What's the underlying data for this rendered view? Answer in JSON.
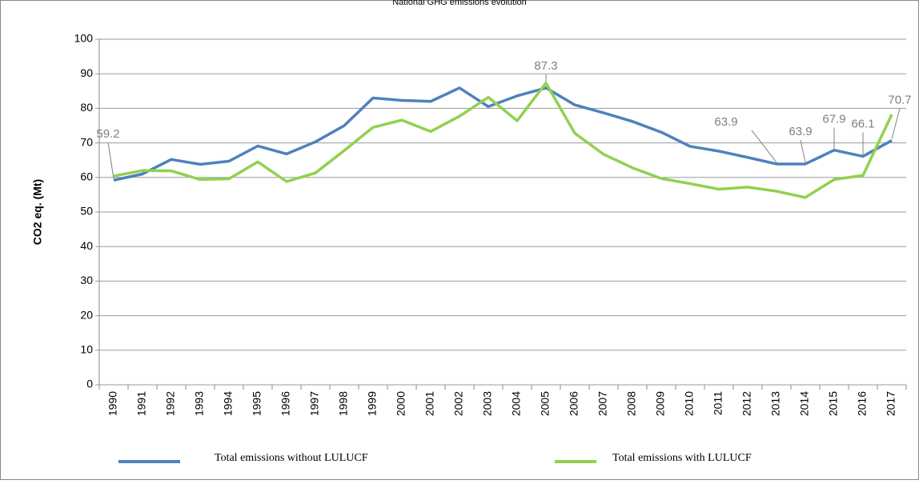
{
  "chart_data": {
    "type": "line",
    "title": "National GHG emissions evolution",
    "y_label": "CO2 eq. (Mt)",
    "categories": [
      "1990",
      "1991",
      "1992",
      "1993",
      "1994",
      "1995",
      "1996",
      "1997",
      "1998",
      "1999",
      "2000",
      "2001",
      "2002",
      "2003",
      "2004",
      "2005",
      "2006",
      "2007",
      "2008",
      "2009",
      "2010",
      "2011",
      "2012",
      "2013",
      "2014",
      "2015",
      "2016",
      "2017"
    ],
    "series": [
      {
        "name": "Total emissions without LULUCF",
        "color": "#4f81bd",
        "values": [
          59.2,
          61,
          65.2,
          63.8,
          64.7,
          69.1,
          66.8,
          70.3,
          75,
          83,
          82.3,
          82,
          85.9,
          80.5,
          83.6,
          85.9,
          81,
          78.7,
          76.2,
          73.1,
          69,
          67.6,
          65.8,
          63.9,
          63.9,
          67.9,
          66.1,
          70.7
        ],
        "value_labels": [
          "59.2",
          null,
          null,
          null,
          null,
          null,
          null,
          null,
          null,
          null,
          null,
          null,
          null,
          null,
          null,
          null,
          null,
          null,
          null,
          null,
          null,
          null,
          null,
          "63.9",
          "63.9",
          "67.9",
          "66.1",
          "70.7"
        ]
      },
      {
        "name": "Total emissions with LULUCF",
        "color": "#92d050",
        "values": [
          60.4,
          62,
          61.9,
          59.4,
          59.6,
          64.5,
          58.8,
          61.3,
          67.8,
          74.5,
          76.6,
          73.3,
          77.7,
          83.2,
          76.4,
          87.3,
          72.8,
          66.7,
          62.8,
          59.7,
          58.2,
          56.6,
          57.2,
          56,
          54.2,
          59.4,
          60.6,
          78.2
        ],
        "value_labels": [
          null,
          null,
          null,
          null,
          null,
          null,
          null,
          null,
          null,
          null,
          null,
          null,
          null,
          null,
          null,
          "87.3",
          null,
          null,
          null,
          null,
          null,
          null,
          null,
          null,
          null,
          null,
          null,
          null
        ]
      }
    ],
    "ylim": [
      0,
      100
    ],
    "yticks": [
      0,
      10,
      20,
      30,
      40,
      50,
      60,
      70,
      80,
      90,
      100
    ],
    "grid": true
  }
}
